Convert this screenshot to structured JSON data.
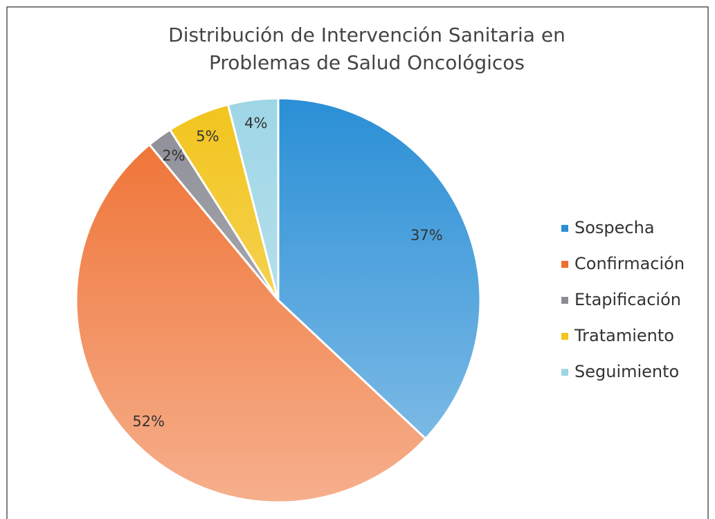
{
  "chart_data": {
    "type": "pie",
    "title": [
      "Distribución de Intervención Sanitaria en",
      "Problemas de Salud Oncológicos"
    ],
    "categories": [
      "Sospecha",
      "Confirmación",
      "Etapificación",
      "Tratamiento",
      "Seguimiento"
    ],
    "values": [
      37,
      52,
      2,
      5,
      4
    ],
    "value_labels": [
      "37%",
      "52%",
      "2%",
      "5%",
      "4%"
    ],
    "colors": [
      "#2a8fd6",
      "#ee6e2e",
      "#8c8c96",
      "#f2c41c",
      "#9ed6e6"
    ],
    "legend": "right"
  }
}
